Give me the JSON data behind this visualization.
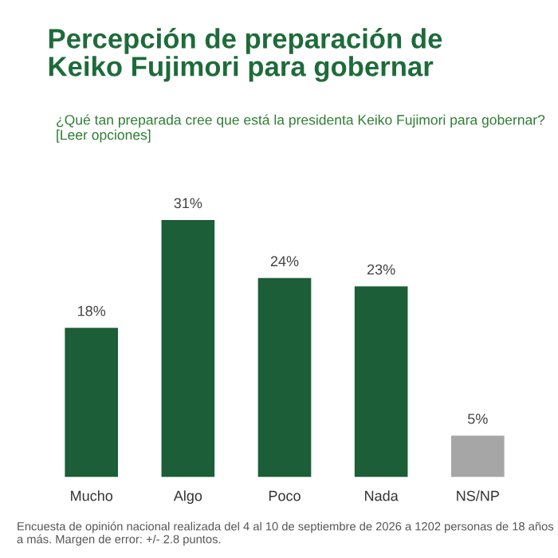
{
  "chart_data": {
    "type": "bar",
    "title": "Percepción de preparación de\nKeiko Fujimori para gobernar",
    "subtitle": "¿Qué tan preparada cree que está la presidenta Keiko Fujimori para gobernar? [Leer opciones]",
    "categories": [
      "Mucho",
      "Algo",
      "Poco",
      "Nada",
      "NS/NP"
    ],
    "values": [
      18,
      31,
      24,
      23,
      5
    ],
    "colors": [
      "#1b5e37",
      "#1b5e37",
      "#1b5e37",
      "#1b5e37",
      "#a6a6a6"
    ],
    "data_labels": true,
    "value_labels": [
      "18%",
      "31%",
      "24%",
      "23%",
      "5%"
    ],
    "grid": false,
    "legend": false,
    "annotations": [
      "Encuesta de opinión nacional realizada del 4 al 10 de septiembre de 2026 a 1202 personas de 18 años a más. Margen de error: +/- 2.8 puntos."
    ]
  }
}
